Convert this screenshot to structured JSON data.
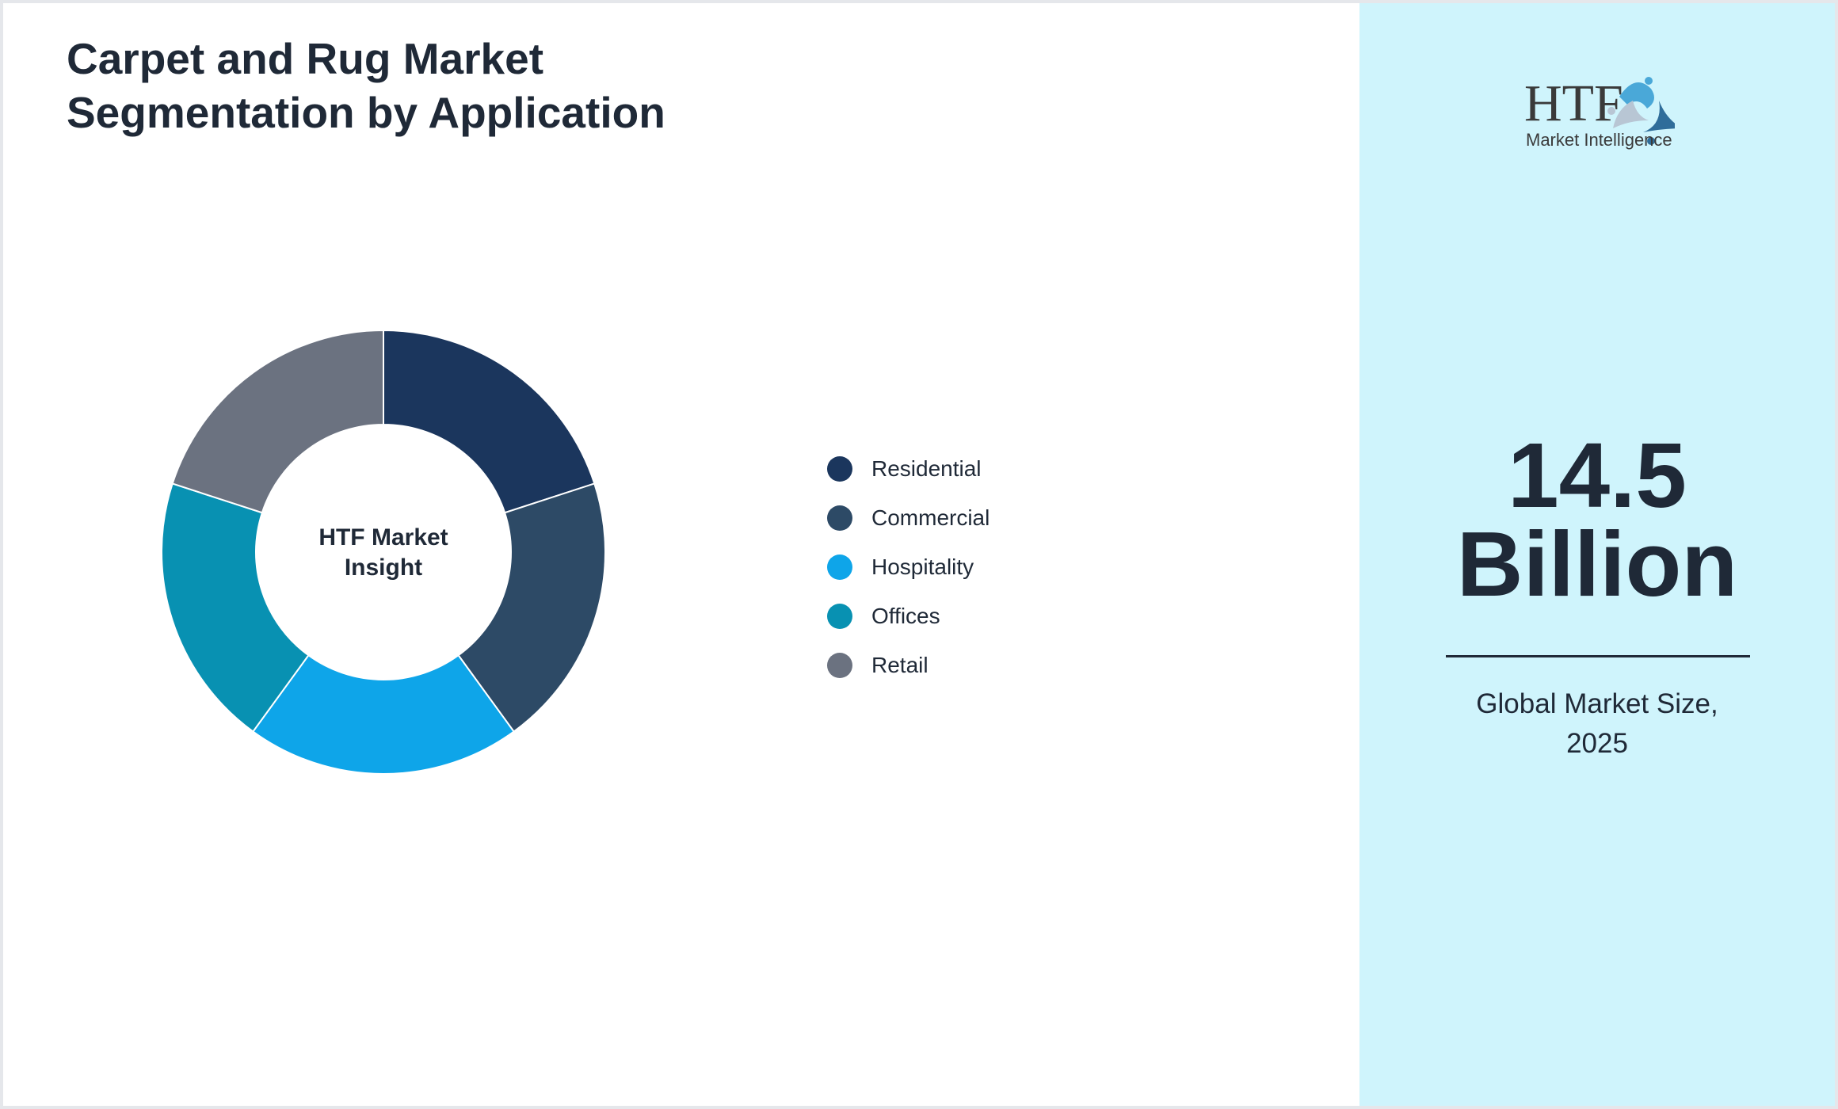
{
  "title_line1": "Carpet and Rug Market",
  "title_line2": "Segmentation by Application",
  "chart_data": {
    "type": "pie",
    "subtype": "donut",
    "center_label_line1": "HTF Market",
    "center_label_line2": "Insight",
    "categories": [
      "Residential",
      "Commercial",
      "Hospitality",
      "Offices",
      "Retail"
    ],
    "values": [
      20,
      20,
      20,
      20,
      20
    ],
    "colors": [
      "#1b365d",
      "#2d4a66",
      "#0ea5e9",
      "#0891b2",
      "#6b7280"
    ],
    "legend_position": "right"
  },
  "sidebar": {
    "logo_text": "HTF Market Intelligence",
    "value_line1": "14.5",
    "value_line2": "Billion",
    "caption_line1": "Global Market Size,",
    "caption_line2": "2025",
    "background": "#cff4fc"
  }
}
